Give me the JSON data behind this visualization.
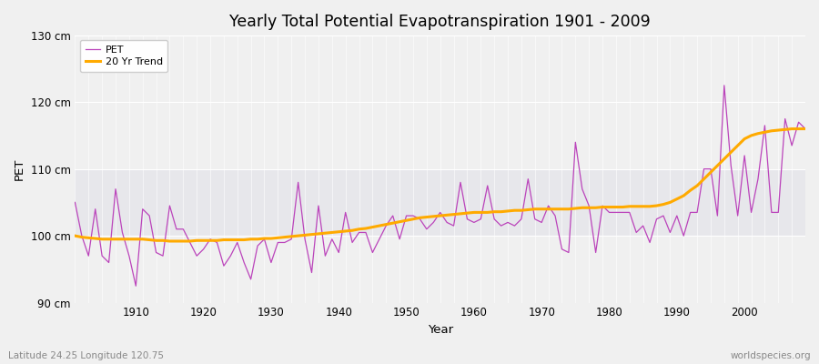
{
  "title": "Yearly Total Potential Evapotranspiration 1901 - 2009",
  "xlabel": "Year",
  "ylabel": "PET",
  "subtitle_left": "Latitude 24.25 Longitude 120.75",
  "subtitle_right": "worldspecies.org",
  "pet_color": "#bb44bb",
  "trend_color": "#ffaa00",
  "bg_color": "#f0f0f0",
  "plot_bg_color": "#f0f0f0",
  "band_color": "#e0e0e8",
  "ylim": [
    90,
    130
  ],
  "xlim": [
    1901,
    2009
  ],
  "yticks": [
    90,
    100,
    110,
    120,
    130
  ],
  "ytick_labels": [
    "90 cm",
    "100 cm",
    "110 cm",
    "120 cm",
    "130 cm"
  ],
  "xticks": [
    1910,
    1920,
    1930,
    1940,
    1950,
    1960,
    1970,
    1980,
    1990,
    2000
  ],
  "legend_labels": [
    "PET",
    "20 Yr Trend"
  ],
  "pet_values": [
    105.0,
    100.0,
    97.0,
    104.0,
    97.0,
    96.0,
    107.0,
    100.5,
    97.0,
    92.5,
    104.0,
    103.0,
    97.5,
    97.0,
    104.5,
    101.0,
    101.0,
    99.0,
    97.0,
    98.0,
    99.5,
    99.0,
    95.5,
    97.0,
    99.0,
    96.0,
    93.5,
    98.5,
    99.5,
    96.0,
    99.0,
    99.0,
    99.5,
    108.0,
    99.5,
    94.5,
    104.5,
    97.0,
    99.5,
    97.5,
    103.5,
    99.0,
    100.5,
    100.5,
    97.5,
    99.5,
    101.5,
    103.0,
    99.5,
    103.0,
    103.0,
    102.5,
    101.0,
    102.0,
    103.5,
    102.0,
    101.5,
    108.0,
    102.5,
    102.0,
    102.5,
    107.5,
    102.5,
    101.5,
    102.0,
    101.5,
    102.5,
    108.5,
    102.5,
    102.0,
    104.5,
    103.0,
    98.0,
    97.5,
    114.0,
    107.0,
    104.5,
    97.5,
    104.5,
    103.5,
    103.5,
    103.5,
    103.5,
    100.5,
    101.5,
    99.0,
    102.5,
    103.0,
    100.5,
    103.0,
    100.0,
    103.5,
    103.5,
    110.0,
    110.0,
    103.0,
    122.5,
    110.5,
    103.0,
    112.0,
    103.5,
    108.5,
    116.5,
    103.5,
    103.5,
    117.5,
    113.5,
    117.0,
    116.0
  ],
  "trend_start_year": 1901,
  "trend_values": [
    100.0,
    99.8,
    99.7,
    99.6,
    99.5,
    99.5,
    99.5,
    99.5,
    99.5,
    99.5,
    99.5,
    99.4,
    99.3,
    99.3,
    99.2,
    99.2,
    99.2,
    99.2,
    99.3,
    99.3,
    99.3,
    99.3,
    99.4,
    99.4,
    99.4,
    99.4,
    99.5,
    99.5,
    99.6,
    99.6,
    99.7,
    99.8,
    99.9,
    100.0,
    100.1,
    100.2,
    100.3,
    100.4,
    100.5,
    100.6,
    100.7,
    100.8,
    101.0,
    101.1,
    101.3,
    101.5,
    101.7,
    101.9,
    102.1,
    102.3,
    102.5,
    102.7,
    102.8,
    102.9,
    103.0,
    103.1,
    103.2,
    103.3,
    103.4,
    103.5,
    103.5,
    103.5,
    103.6,
    103.6,
    103.7,
    103.8,
    103.8,
    103.9,
    104.0,
    104.0,
    104.0,
    104.0,
    104.0,
    104.0,
    104.1,
    104.2,
    104.2,
    104.2,
    104.3,
    104.3,
    104.3,
    104.3,
    104.4,
    104.4,
    104.4,
    104.4,
    104.5,
    104.7,
    105.0,
    105.5,
    106.0,
    106.8,
    107.5,
    108.5,
    109.5,
    110.5,
    111.5,
    112.5,
    113.5,
    114.5,
    115.0,
    115.3,
    115.5,
    115.7,
    115.8,
    115.9,
    116.0,
    116.0,
    116.0
  ]
}
